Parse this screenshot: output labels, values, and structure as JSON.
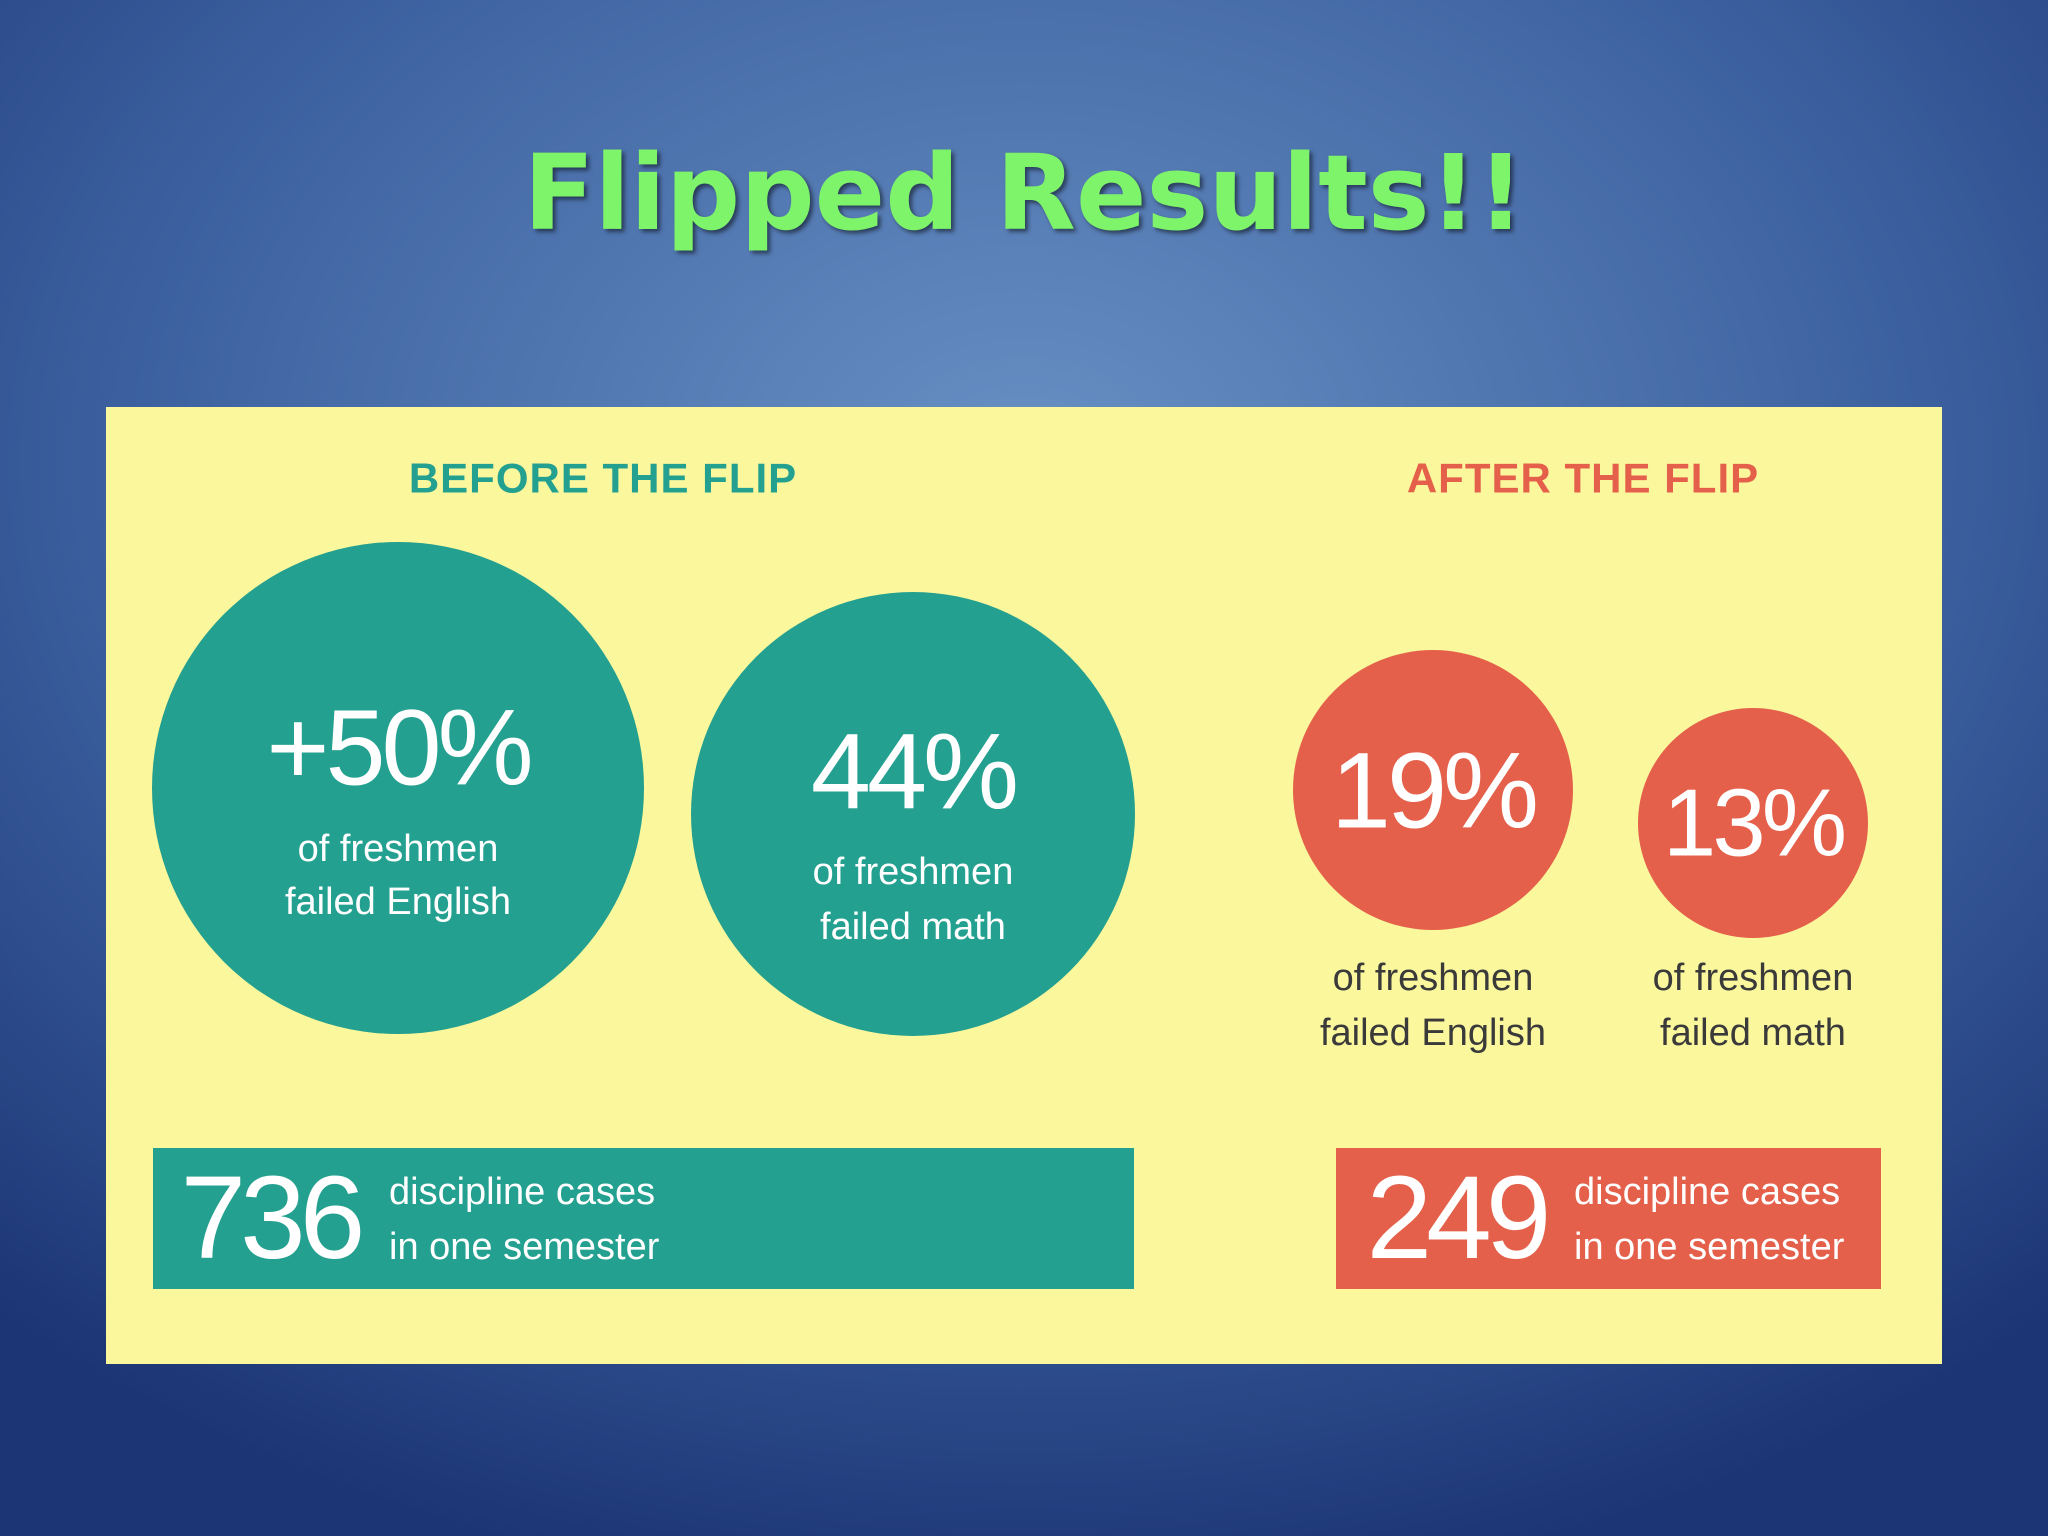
{
  "title": "Flipped Results!!",
  "before": {
    "heading": "BEFORE THE FLIP",
    "stats": [
      {
        "value": "+50%",
        "lines": [
          "of freshmen",
          "failed English"
        ]
      },
      {
        "value": "44%",
        "lines": [
          "of freshmen",
          "failed math"
        ]
      }
    ],
    "discipline": {
      "value": "736",
      "lines": [
        "discipline cases",
        "in one semester"
      ]
    }
  },
  "after": {
    "heading": "AFTER THE FLIP",
    "stats": [
      {
        "value": "19%",
        "lines": [
          "of freshmen",
          "failed English"
        ]
      },
      {
        "value": "13%",
        "lines": [
          "of freshmen",
          "failed math"
        ]
      }
    ],
    "discipline": {
      "value": "249",
      "lines": [
        "discipline cases",
        "in one semester"
      ]
    }
  }
}
